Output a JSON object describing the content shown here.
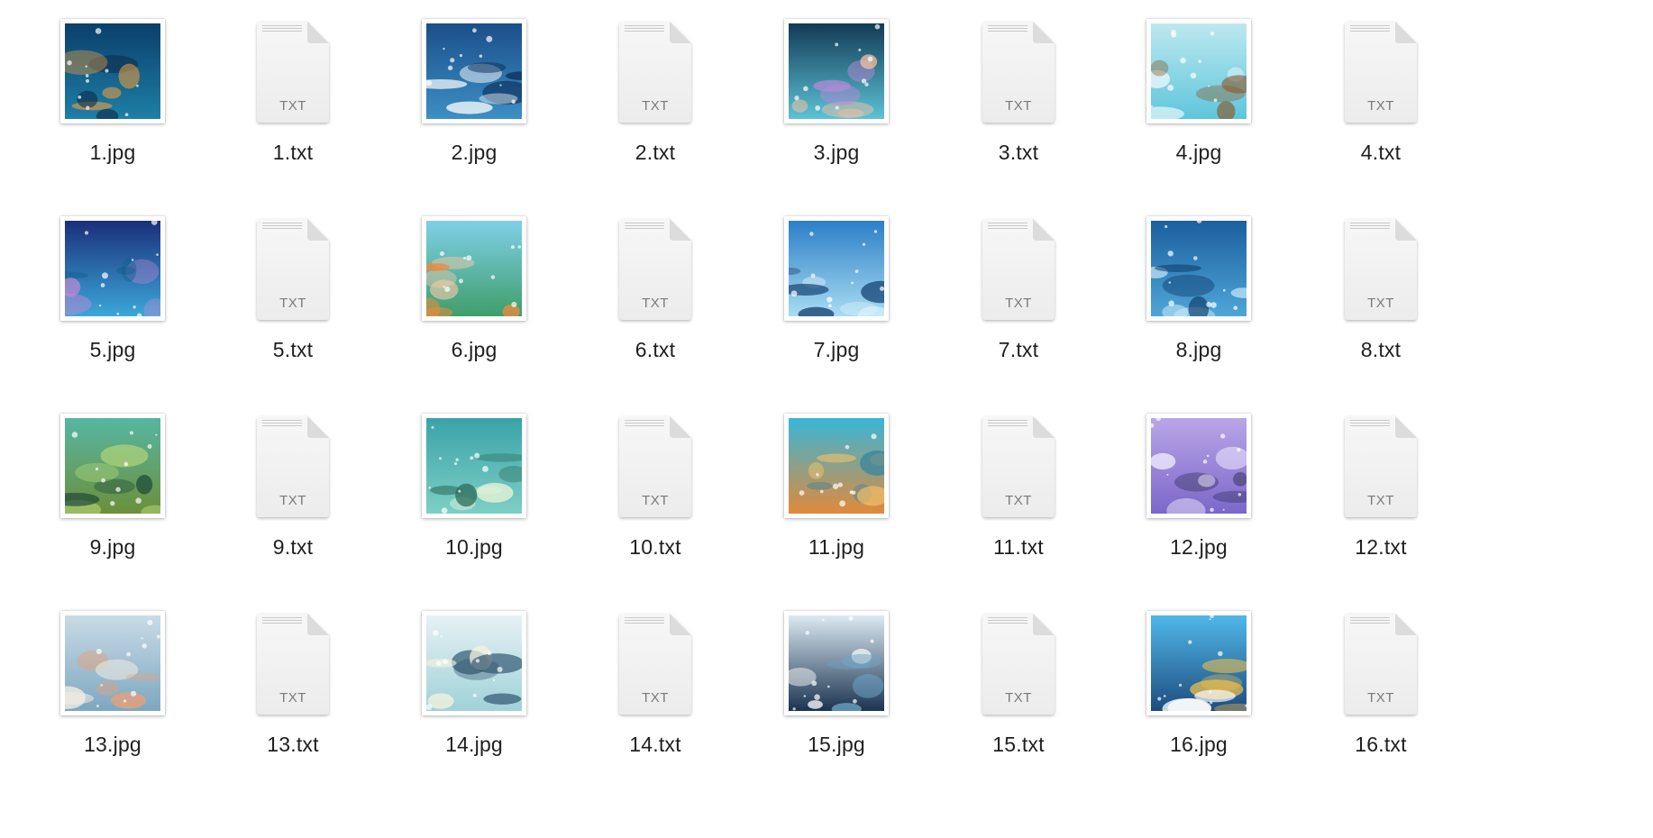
{
  "window": {
    "view": "icon-grid"
  },
  "doc_icon": {
    "badge": "TXT"
  },
  "files": [
    {
      "name": "1.jpg",
      "type": "image",
      "icon": "image-thumbnail-moon-underwater",
      "colors": [
        "#0a3f6b",
        "#1e7fa6",
        "#f6a23a",
        "#0b2747"
      ]
    },
    {
      "name": "1.txt",
      "type": "text",
      "icon": "txt-document-icon"
    },
    {
      "name": "2.jpg",
      "type": "image",
      "icon": "image-thumbnail-icebergs",
      "colors": [
        "#1b4f8a",
        "#3c8fc4",
        "#ffffff",
        "#0d2f5c"
      ]
    },
    {
      "name": "2.txt",
      "type": "text",
      "icon": "txt-document-icon"
    },
    {
      "name": "3.jpg",
      "type": "image",
      "icon": "image-thumbnail-aurora-crystals",
      "colors": [
        "#123a55",
        "#5cc3d6",
        "#f4c2a0",
        "#b58ad8"
      ]
    },
    {
      "name": "3.txt",
      "type": "text",
      "icon": "txt-document-icon"
    },
    {
      "name": "4.jpg",
      "type": "image",
      "icon": "image-thumbnail-sea-turtles",
      "colors": [
        "#bde8f0",
        "#5ec6dc",
        "#8a5a2b",
        "#e9f8fb"
      ]
    },
    {
      "name": "4.txt",
      "type": "text",
      "icon": "txt-document-icon"
    },
    {
      "name": "5.jpg",
      "type": "image",
      "icon": "image-thumbnail-aurora-iceberg",
      "colors": [
        "#1a2f7a",
        "#3ba7d9",
        "#c78ad6",
        "#0f5e8f"
      ]
    },
    {
      "name": "5.txt",
      "type": "text",
      "icon": "txt-document-icon"
    },
    {
      "name": "6.jpg",
      "type": "image",
      "icon": "image-thumbnail-coral-clownfish",
      "colors": [
        "#7fd0e8",
        "#3f9e6a",
        "#f08a3c",
        "#f4c9a8"
      ]
    },
    {
      "name": "6.txt",
      "type": "text",
      "icon": "txt-document-icon"
    },
    {
      "name": "7.jpg",
      "type": "image",
      "icon": "image-thumbnail-penguins-diving",
      "colors": [
        "#2c7fc8",
        "#a8dcf2",
        "#103d6e",
        "#e6f6fb"
      ]
    },
    {
      "name": "7.txt",
      "type": "text",
      "icon": "txt-document-icon"
    },
    {
      "name": "8.jpg",
      "type": "image",
      "icon": "image-thumbnail-whale-shark",
      "colors": [
        "#1c5f9e",
        "#4ea6d8",
        "#cfeefa",
        "#0d3766"
      ]
    },
    {
      "name": "8.txt",
      "type": "text",
      "icon": "txt-document-icon"
    },
    {
      "name": "9.jpg",
      "type": "image",
      "icon": "image-thumbnail-kelp-forest",
      "colors": [
        "#56b6a4",
        "#6c8f3a",
        "#b7d87a",
        "#1f4a3a"
      ]
    },
    {
      "name": "9.txt",
      "type": "text",
      "icon": "txt-document-icon"
    },
    {
      "name": "10.jpg",
      "type": "image",
      "icon": "image-thumbnail-seal-kelp",
      "colors": [
        "#3aa3a8",
        "#7dcfc5",
        "#2a6a56",
        "#e8f4d8"
      ]
    },
    {
      "name": "10.txt",
      "type": "text",
      "icon": "txt-document-icon"
    },
    {
      "name": "11.jpg",
      "type": "image",
      "icon": "image-thumbnail-seahorse",
      "colors": [
        "#38b6d8",
        "#e08a3a",
        "#f3c26a",
        "#2e7fa0"
      ]
    },
    {
      "name": "11.txt",
      "type": "text",
      "icon": "txt-document-icon"
    },
    {
      "name": "12.jpg",
      "type": "image",
      "icon": "image-thumbnail-belugas",
      "colors": [
        "#b9a6e8",
        "#7b67c9",
        "#f4f0ff",
        "#2a2a4a"
      ]
    },
    {
      "name": "12.txt",
      "type": "text",
      "icon": "txt-document-icon"
    },
    {
      "name": "13.jpg",
      "type": "image",
      "icon": "image-thumbnail-shrimp-shore",
      "colors": [
        "#c9dbe6",
        "#7ca7c0",
        "#e8a07a",
        "#f3ede2"
      ]
    },
    {
      "name": "13.txt",
      "type": "text",
      "icon": "txt-document-icon"
    },
    {
      "name": "14.jpg",
      "type": "image",
      "icon": "image-thumbnail-manta-rays",
      "colors": [
        "#e6f1f4",
        "#9fd2d8",
        "#2b4f6a",
        "#f5f3dc"
      ]
    },
    {
      "name": "14.txt",
      "type": "text",
      "icon": "txt-document-icon"
    },
    {
      "name": "15.jpg",
      "type": "image",
      "icon": "image-thumbnail-orcas",
      "colors": [
        "#dce9f2",
        "#1a3350",
        "#6fa6c8",
        "#ffffff"
      ]
    },
    {
      "name": "15.txt",
      "type": "text",
      "icon": "txt-document-icon"
    },
    {
      "name": "16.jpg",
      "type": "image",
      "icon": "image-thumbnail-orca-waves",
      "colors": [
        "#4fb8e8",
        "#1e4c80",
        "#f2c14a",
        "#ffffff"
      ]
    },
    {
      "name": "16.txt",
      "type": "text",
      "icon": "txt-document-icon"
    }
  ]
}
